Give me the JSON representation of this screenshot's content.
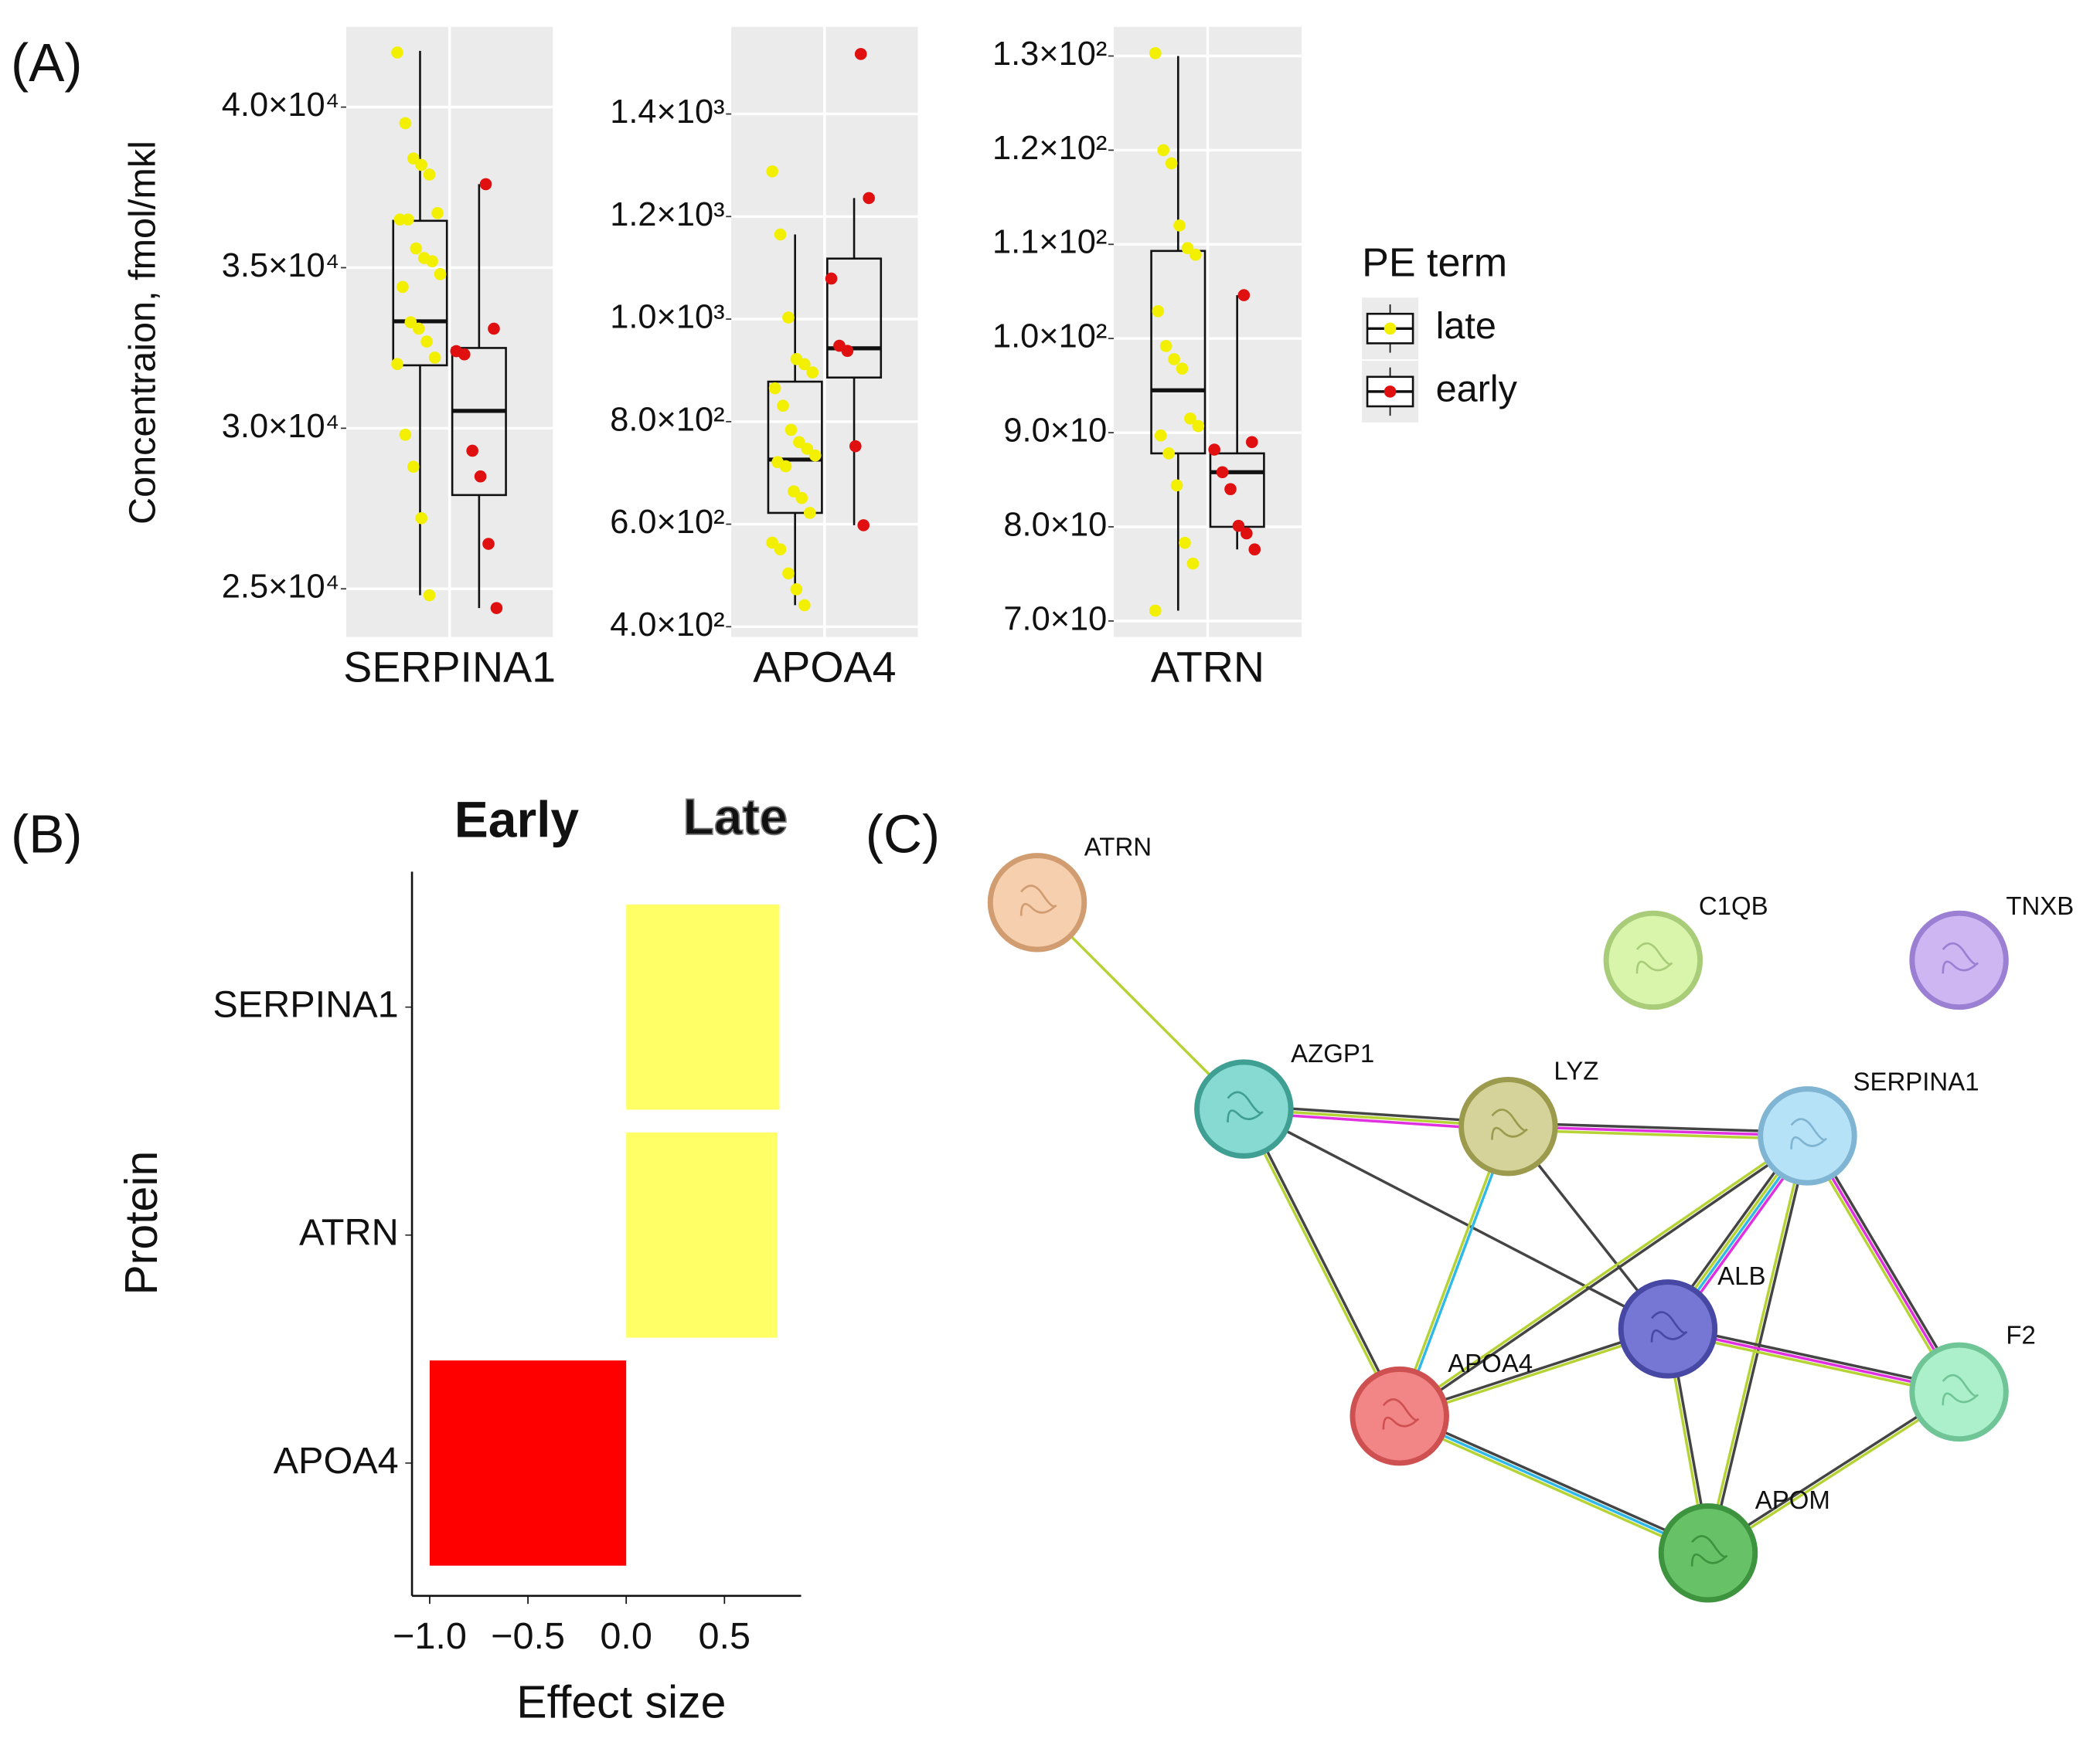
{
  "panel_labels": [
    "(A)",
    "(B)",
    "(C)"
  ],
  "chart_data": [
    {
      "type": "box",
      "ylabel": "Concentraion, fmol/mkl",
      "legend_title": "PE term",
      "grid": true,
      "series": [
        {
          "name": "late",
          "color": "#f2f000"
        },
        {
          "name": "early",
          "color": "#e01010"
        }
      ],
      "panels": [
        {
          "xlabel": "SERPINA1",
          "ylim": [
            23500,
            42500
          ],
          "yticks": [
            {
              "value": 25000,
              "label": "2.5×10⁴"
            },
            {
              "value": 30000,
              "label": "3.0×10⁴"
            },
            {
              "value": 35000,
              "label": "3.5×10⁴"
            },
            {
              "value": 40000,
              "label": "4.0×10⁴"
            }
          ],
          "groups": [
            {
              "stats": {
                "whisker_low": 24800,
                "q1": 31960,
                "median": 33330,
                "q3": 36460,
                "whisker_high": 41750
              },
              "points": [
                41700,
                39500,
                38400,
                38200,
                37900,
                36700,
                36500,
                36500,
                35600,
                35300,
                35200,
                34800,
                34400,
                33300,
                33100,
                32700,
                32200,
                32000,
                29800,
                28800,
                27200,
                24800
              ]
            },
            {
              "stats": {
                "whisker_low": 24400,
                "q1": 27920,
                "median": 30540,
                "q3": 32500,
                "whisker_high": 37600
              },
              "points": [
                37600,
                33100,
                32400,
                32300,
                29300,
                28500,
                26400,
                24400
              ]
            }
          ]
        },
        {
          "xlabel": "APOA4",
          "ylim": [
            380,
            1570
          ],
          "yticks": [
            {
              "value": 400,
              "label": "4.0×10²"
            },
            {
              "value": 600,
              "label": "6.0×10²"
            },
            {
              "value": 800,
              "label": "8.0×10²"
            },
            {
              "value": 1000,
              "label": "1.0×10³"
            },
            {
              "value": 1200,
              "label": "1.2×10³"
            },
            {
              "value": 1400,
              "label": "1.4×10³"
            }
          ],
          "groups": [
            {
              "stats": {
                "whisker_low": 442,
                "q1": 622,
                "median": 726,
                "q3": 878,
                "whisker_high": 1165
              },
              "points": [
                1288,
                1165,
                1003,
                922,
                912,
                896,
                865,
                831,
                784,
                760,
                747,
                734,
                721,
                713,
                664,
                651,
                622,
                564,
                551,
                504,
                473,
                442
              ]
            },
            {
              "stats": {
                "whisker_low": 598,
                "q1": 886,
                "median": 943,
                "q3": 1118,
                "whisker_high": 1236
              },
              "points": [
                1517,
                1236,
                1079,
                948,
                938,
                752,
                598
              ]
            }
          ]
        },
        {
          "xlabel": "ATRN",
          "ylim": [
            68.3,
            133.1
          ],
          "yticks": [
            {
              "value": 70,
              "label": "7.0×10"
            },
            {
              "value": 80,
              "label": "8.0×10"
            },
            {
              "value": 90,
              "label": "9.0×10"
            },
            {
              "value": 100,
              "label": "1.0×10²"
            },
            {
              "value": 110,
              "label": "1.1×10²"
            },
            {
              "value": 120,
              "label": "1.2×10²"
            },
            {
              "value": 130,
              "label": "1.3×10²"
            }
          ],
          "groups": [
            {
              "stats": {
                "whisker_low": 71.1,
                "q1": 87.8,
                "median": 94.5,
                "q3": 109.3,
                "whisker_high": 130
              },
              "points": [
                130.3,
                120,
                118.6,
                112,
                109.6,
                108.9,
                102.9,
                99.2,
                97.8,
                96.8,
                91.5,
                90.7,
                89.7,
                87.8,
                84.4,
                78.3,
                76.1,
                71.1
              ]
            },
            {
              "stats": {
                "whisker_low": 77.6,
                "q1": 80,
                "median": 85.8,
                "q3": 87.8,
                "whisker_high": 104.6
              },
              "points": [
                104.6,
                89,
                88.2,
                85.8,
                84,
                80.1,
                79.3,
                77.6
              ]
            }
          ]
        }
      ]
    },
    {
      "type": "bar",
      "orientation": "horizontal",
      "xlabel": "Effect size",
      "ylabel": "Protein",
      "categories": [
        "SERPINA1",
        "ATRN",
        "APOA4"
      ],
      "values": [
        0.78,
        0.77,
        -1.0
      ],
      "colors": [
        "#ffff66",
        "#ffff66",
        "#ff0000"
      ],
      "xlim": [
        -1.09,
        0.89
      ],
      "xticks": [
        {
          "value": -1,
          "label": "−1.0"
        },
        {
          "value": -0.5,
          "label": "−0.5"
        },
        {
          "value": 0,
          "label": "0.0"
        },
        0.5
      ],
      "annotations": [
        {
          "text": "Early",
          "color": "#ff0000"
        },
        {
          "text": "Late",
          "color": "#ffff33"
        }
      ]
    }
  ],
  "network": {
    "nodes": [
      "ATRN",
      "C1QB",
      "TNXB",
      "AZGP1",
      "LYZ",
      "SERPINA1",
      "ALB",
      "F2",
      "APOA4",
      "APOM"
    ]
  }
}
